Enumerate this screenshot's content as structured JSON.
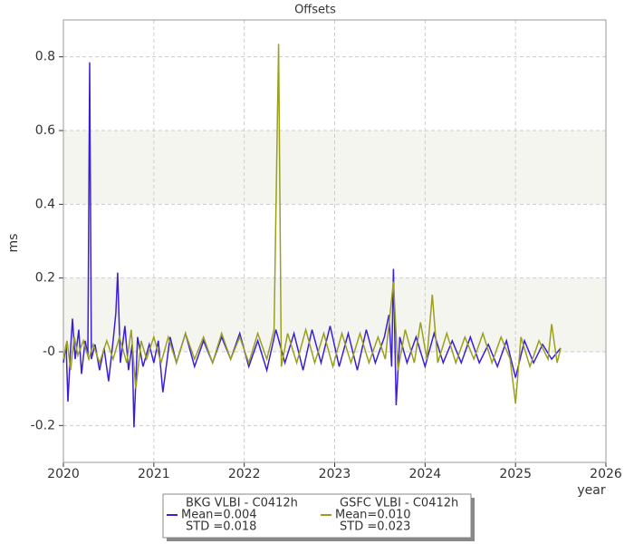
{
  "chart_data": {
    "type": "line",
    "title": "Offsets",
    "xlabel": "year",
    "ylabel": "ms",
    "xlim": [
      2020,
      2026
    ],
    "xticks": [
      2020,
      2021,
      2022,
      2023,
      2024,
      2025,
      2026
    ],
    "ylim": [
      -0.3,
      0.9
    ],
    "yticks": [
      -0.2,
      {
        "value": 0,
        "label": "-0"
      },
      0.2,
      0.4,
      0.6,
      0.8
    ],
    "grid": true,
    "series": [
      {
        "name": "BKG VLBI - C0412h",
        "color": "#3a1fd6",
        "stats": [
          "Mean=0.004",
          "STD =0.018"
        ],
        "x": [
          2020.0,
          2020.03,
          2020.05,
          2020.08,
          2020.1,
          2020.13,
          2020.17,
          2020.2,
          2020.24,
          2020.27,
          2020.29,
          2020.31,
          2020.35,
          2020.4,
          2020.45,
          2020.5,
          2020.55,
          2020.58,
          2020.6,
          2020.63,
          2020.68,
          2020.72,
          2020.76,
          2020.78,
          2020.82,
          2020.88,
          2020.95,
          2021.0,
          2021.05,
          2021.1,
          2021.18,
          2021.25,
          2021.35,
          2021.45,
          2021.55,
          2021.65,
          2021.75,
          2021.85,
          2021.95,
          2022.05,
          2022.15,
          2022.25,
          2022.35,
          2022.45,
          2022.55,
          2022.65,
          2022.75,
          2022.85,
          2022.95,
          2023.05,
          2023.15,
          2023.25,
          2023.35,
          2023.45,
          2023.55,
          2023.6,
          2023.63,
          2023.65,
          2023.68,
          2023.72,
          2023.8,
          2023.9,
          2024.0,
          2024.1,
          2024.2,
          2024.3,
          2024.4,
          2024.5,
          2024.6,
          2024.7,
          2024.8,
          2024.9,
          2025.0,
          2025.1,
          2025.2,
          2025.3,
          2025.4,
          2025.5
        ],
        "values": [
          -0.03,
          0.02,
          -0.135,
          0.01,
          0.09,
          -0.02,
          0.06,
          -0.06,
          0.03,
          -0.01,
          0.785,
          -0.02,
          0.02,
          -0.05,
          0.01,
          -0.08,
          0.03,
          0.105,
          0.215,
          -0.03,
          0.07,
          -0.05,
          0.02,
          -0.205,
          0.04,
          -0.04,
          0.02,
          -0.03,
          0.03,
          -0.11,
          0.04,
          -0.03,
          0.05,
          -0.04,
          0.03,
          -0.03,
          0.04,
          -0.02,
          0.05,
          -0.04,
          0.03,
          -0.05,
          0.06,
          -0.03,
          0.05,
          -0.05,
          0.06,
          -0.03,
          0.07,
          -0.04,
          0.05,
          -0.05,
          0.06,
          -0.03,
          0.04,
          0.1,
          -0.04,
          0.225,
          -0.145,
          0.04,
          -0.03,
          0.04,
          -0.04,
          0.05,
          -0.03,
          0.03,
          -0.03,
          0.04,
          -0.03,
          0.02,
          -0.04,
          0.03,
          -0.07,
          0.03,
          -0.03,
          0.02,
          -0.02,
          0.01
        ]
      },
      {
        "name": "GSFC VLBI - C0412h",
        "color": "#9aa01e",
        "stats": [
          "Mean=0.010",
          "STD =0.023"
        ],
        "x": [
          2020.0,
          2020.04,
          2020.08,
          2020.12,
          2020.16,
          2020.22,
          2020.28,
          2020.33,
          2020.4,
          2020.48,
          2020.55,
          2020.62,
          2020.7,
          2020.75,
          2020.8,
          2020.86,
          2020.92,
          2021.0,
          2021.08,
          2021.16,
          2021.25,
          2021.35,
          2021.45,
          2021.55,
          2021.65,
          2021.75,
          2021.85,
          2021.95,
          2022.05,
          2022.15,
          2022.25,
          2022.33,
          2022.38,
          2022.41,
          2022.48,
          2022.58,
          2022.68,
          2022.78,
          2022.88,
          2022.98,
          2023.08,
          2023.18,
          2023.28,
          2023.38,
          2023.48,
          2023.56,
          2023.65,
          2023.7,
          2023.78,
          2023.88,
          2023.95,
          2024.02,
          2024.08,
          2024.14,
          2024.24,
          2024.34,
          2024.44,
          2024.54,
          2024.64,
          2024.74,
          2024.84,
          2024.94,
          2025.0,
          2025.06,
          2025.16,
          2025.26,
          2025.36,
          2025.4,
          2025.46,
          2025.5
        ],
        "values": [
          -0.02,
          0.03,
          -0.05,
          0.04,
          -0.01,
          0.03,
          -0.02,
          0.02,
          -0.03,
          0.03,
          -0.02,
          0.04,
          -0.03,
          0.06,
          -0.1,
          0.03,
          -0.02,
          0.04,
          -0.03,
          0.04,
          -0.03,
          0.05,
          -0.02,
          0.04,
          -0.03,
          0.05,
          -0.02,
          0.04,
          -0.03,
          0.05,
          -0.02,
          0.06,
          0.835,
          -0.04,
          0.05,
          -0.03,
          0.06,
          -0.03,
          0.05,
          -0.04,
          0.05,
          -0.03,
          0.05,
          -0.03,
          0.04,
          -0.02,
          0.19,
          -0.05,
          0.06,
          -0.03,
          0.08,
          -0.02,
          0.155,
          -0.03,
          0.05,
          -0.03,
          0.04,
          -0.02,
          0.05,
          -0.03,
          0.04,
          -0.02,
          -0.14,
          0.04,
          -0.04,
          0.03,
          -0.02,
          0.075,
          -0.03,
          0.01
        ]
      }
    ]
  }
}
